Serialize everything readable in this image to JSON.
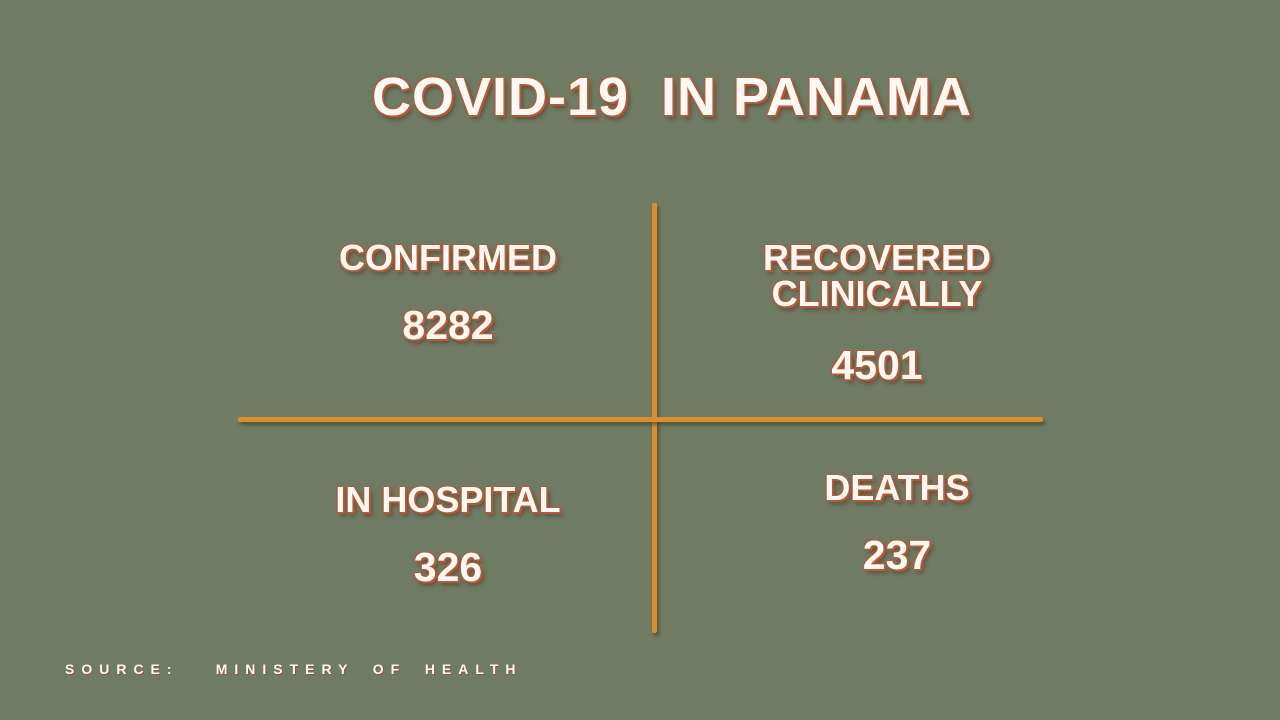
{
  "title": "COVID-19  IN PANAMA",
  "quadrants": [
    {
      "id": "confirmed",
      "label": "CONFIRMED",
      "value": "8282"
    },
    {
      "id": "recovered",
      "label": "RECOVERED CLINICALLY",
      "value": "4501"
    },
    {
      "id": "hospital",
      "label": "IN HOSPITAL",
      "value": "326"
    },
    {
      "id": "deaths",
      "label": "DEATHS",
      "value": "237"
    }
  ],
  "source": "SOURCE:  MINISTERY OF HEALTH",
  "colors": {
    "background": "#6f7b63",
    "line": "#dd8e2c",
    "text": "#fdf9f2",
    "text_outline": "#b4593a"
  },
  "chart_data": {
    "type": "table",
    "title": "COVID-19 IN PANAMA",
    "categories": [
      "CONFIRMED",
      "RECOVERED CLINICALLY",
      "IN HOSPITAL",
      "DEATHS"
    ],
    "values": [
      8282,
      4501,
      326,
      237
    ],
    "layout": "quadrant-grid divided by orange cross lines",
    "source": "SOURCE: MINISTERY OF HEALTH"
  }
}
